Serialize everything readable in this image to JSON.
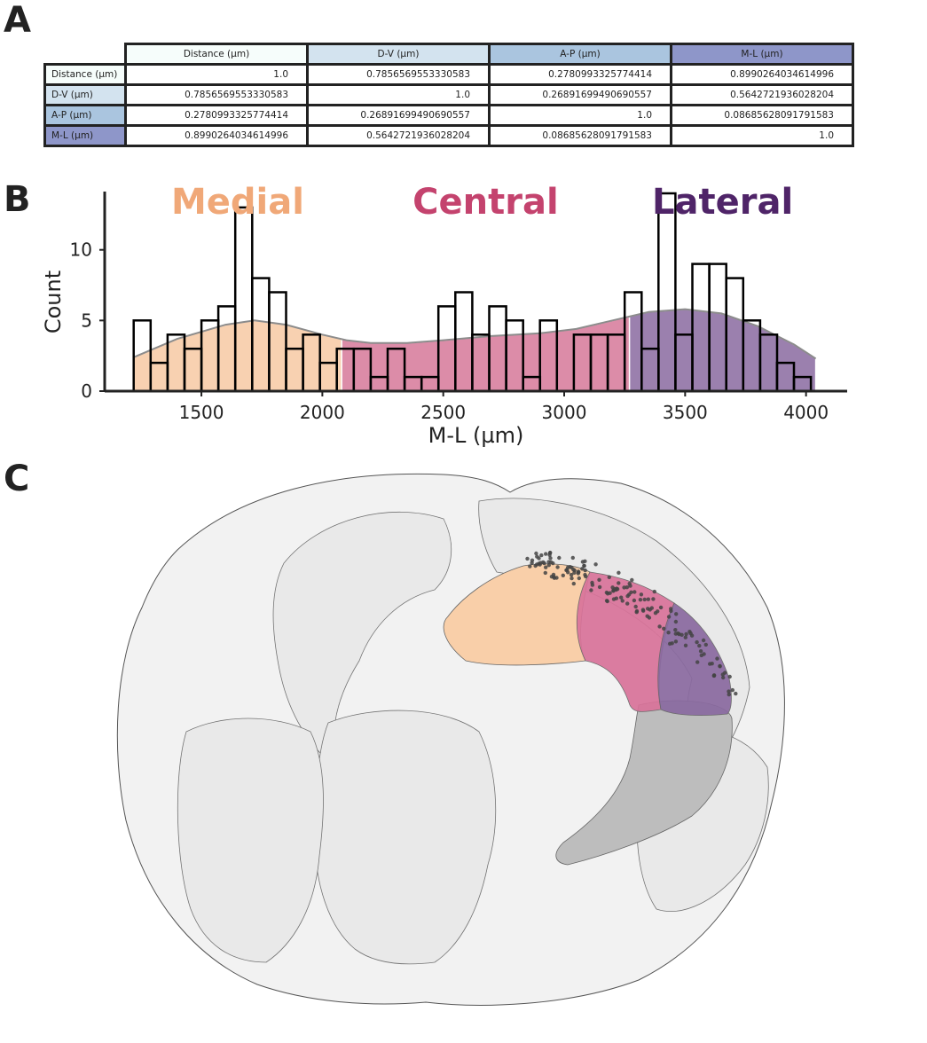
{
  "panels": {
    "a": "A",
    "b": "B",
    "c": "C"
  },
  "table": {
    "columns": [
      "Distance (µm)",
      "D-V (µm)",
      "A-P (µm)",
      "M-L (µm)"
    ],
    "header_colors": [
      "#f6fdfb",
      "#d3e3ef",
      "#aac5df",
      "#8e96c9"
    ],
    "rows": [
      {
        "label": "Distance (µm)",
        "values": [
          "1.0",
          "0.7856569553330583",
          "0.2780993325774414",
          "0.8990264034614996"
        ]
      },
      {
        "label": "D-V (µm)",
        "values": [
          "0.7856569553330583",
          "1.0",
          "0.26891699490690557",
          "0.5642721936028204"
        ]
      },
      {
        "label": "A-P (µm)",
        "values": [
          "0.2780993325774414",
          "0.26891699490690557",
          "1.0",
          "0.08685628091791583"
        ]
      },
      {
        "label": "M-L (µm)",
        "values": [
          "0.8990264034614996",
          "0.5642721936028204",
          "0.08685628091791583",
          "1.0"
        ]
      }
    ]
  },
  "chart_data": {
    "type": "bar",
    "xlabel": "M-L (µm)",
    "ylabel": "Count",
    "xlim": [
      1100,
      4170
    ],
    "ylim": [
      0,
      14.5
    ],
    "xticks": [
      1500,
      2000,
      2500,
      3000,
      3500,
      4000
    ],
    "yticks": [
      0,
      5,
      10
    ],
    "bin_edges": [
      1220,
      1290,
      1360,
      1430,
      1500,
      1570,
      1640,
      1710,
      1780,
      1850,
      1920,
      1990,
      2060,
      2130,
      2200,
      2270,
      2340,
      2410,
      2480,
      2550,
      2620,
      2690,
      2760,
      2830,
      2900,
      2970,
      3040,
      3110,
      3180,
      3250,
      3320,
      3390,
      3460,
      3530,
      3600,
      3670,
      3740,
      3810,
      3880,
      3950,
      4020
    ],
    "counts": [
      5,
      2,
      4,
      3,
      5,
      6,
      13,
      8,
      7,
      3,
      4,
      2,
      3,
      3,
      1,
      3,
      1,
      1,
      6,
      7,
      4,
      6,
      5,
      1,
      5,
      0,
      4,
      4,
      4,
      7,
      3,
      14,
      4,
      9,
      9,
      8,
      5,
      4,
      2,
      1
    ],
    "regions": [
      {
        "label": "Medial",
        "color": "#f0a878",
        "fill": "#f7c9a4",
        "range": [
          1220,
          2080
        ]
      },
      {
        "label": "Central",
        "color": "#c4436e",
        "fill": "#d77999",
        "range": [
          2080,
          3270
        ]
      },
      {
        "label": "Lateral",
        "color": "#4f2468",
        "fill": "#8a6aa0",
        "range": [
          3270,
          4040
        ]
      }
    ],
    "kde": [
      [
        1220,
        2.4
      ],
      [
        1400,
        3.7
      ],
      [
        1600,
        4.7
      ],
      [
        1720,
        5.0
      ],
      [
        1850,
        4.7
      ],
      [
        2000,
        4.0
      ],
      [
        2100,
        3.6
      ],
      [
        2200,
        3.4
      ],
      [
        2350,
        3.4
      ],
      [
        2500,
        3.6
      ],
      [
        2700,
        3.9
      ],
      [
        2900,
        4.1
      ],
      [
        3050,
        4.4
      ],
      [
        3200,
        5.0
      ],
      [
        3350,
        5.6
      ],
      [
        3500,
        5.8
      ],
      [
        3650,
        5.5
      ],
      [
        3800,
        4.6
      ],
      [
        3950,
        3.3
      ],
      [
        4040,
        2.3
      ]
    ]
  },
  "brain": {
    "points": 160,
    "colors": {
      "outline": "#555555",
      "fill": "#f2f2f2",
      "dots": "#444444",
      "gray_region": "#bdbdbd"
    }
  }
}
